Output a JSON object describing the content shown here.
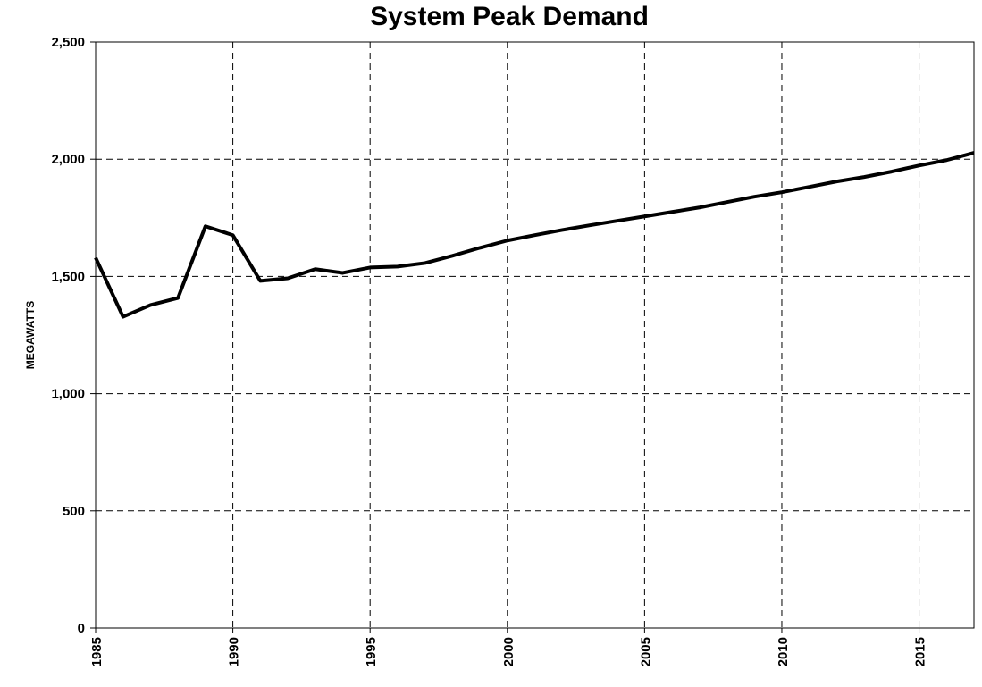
{
  "chart_data": {
    "type": "line",
    "title": "System Peak Demand",
    "y_label": "MEGAWATTS",
    "x": [
      1985,
      1986,
      1987,
      1988,
      1989,
      1990,
      1991,
      1992,
      1993,
      1994,
      1995,
      1996,
      1997,
      1998,
      1999,
      2000,
      2001,
      2002,
      2003,
      2004,
      2005,
      2006,
      2007,
      2008,
      2009,
      2010,
      2011,
      2012,
      2013,
      2014,
      2015,
      2016,
      2017
    ],
    "series": [
      {
        "name": "System Peak Demand",
        "color": "#000000",
        "values": [
          1580,
          1328,
          1378,
          1408,
          1714,
          1676,
          1481,
          1492,
          1531,
          1515,
          1538,
          1542,
          1557,
          1588,
          1622,
          1653,
          1676,
          1698,
          1718,
          1737,
          1756,
          1775,
          1794,
          1817,
          1840,
          1859,
          1882,
          1905,
          1924,
          1947,
          1973,
          1996,
          2027
        ]
      }
    ],
    "xlim": [
      1985,
      2017
    ],
    "xticks": [
      1985,
      1990,
      1995,
      2000,
      2005,
      2010,
      2015
    ],
    "ylim": [
      0,
      2500
    ],
    "yticks": [
      0,
      500,
      {
        "value": 1000,
        "label": "1,000"
      },
      {
        "value": 1500,
        "label": "1,500"
      },
      {
        "value": 2000,
        "label": "2,000"
      },
      {
        "value": 2500,
        "label": "2,500"
      }
    ],
    "grid": true
  }
}
